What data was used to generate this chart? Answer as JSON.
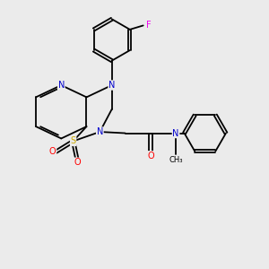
{
  "bg_color": "#ebebeb",
  "atom_colors": {
    "N": "#0000cc",
    "O": "#ff0000",
    "S": "#ccaa00",
    "F": "#ee00ee",
    "C": "#000000"
  },
  "lw": 1.3,
  "fs": 7.0,
  "fs_small": 6.0
}
